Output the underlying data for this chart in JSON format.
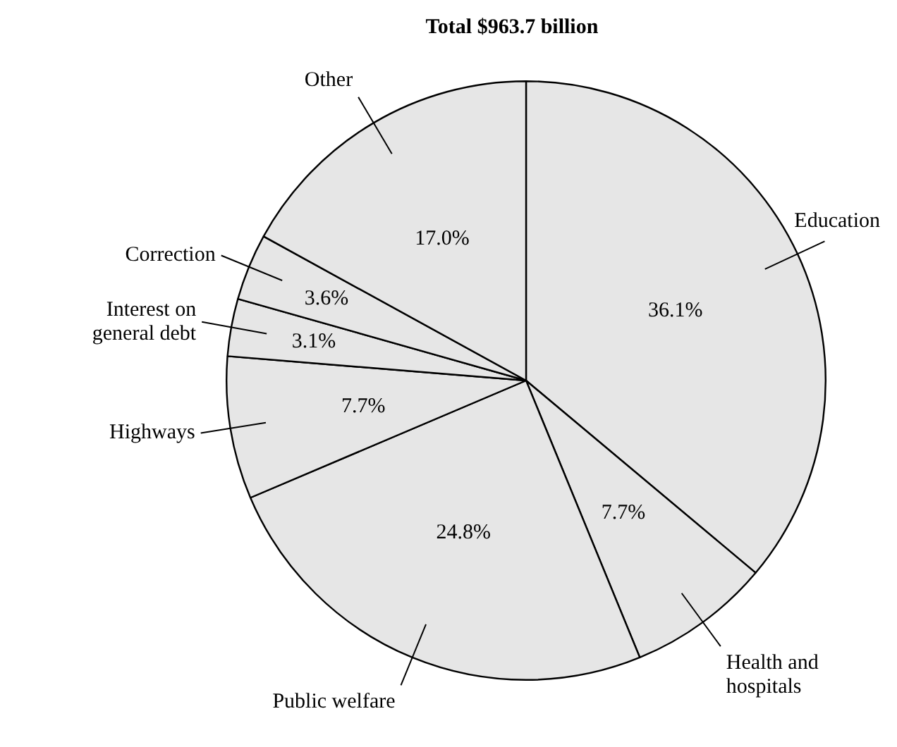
{
  "chart_data": {
    "type": "pie",
    "title": "Total $963.7 billion",
    "categories": [
      "Education",
      "Health and hospitals",
      "Public welfare",
      "Highways",
      "Interest on general debt",
      "Correction",
      "Other"
    ],
    "values": [
      36.1,
      7.7,
      24.8,
      7.7,
      3.1,
      3.6,
      17.0
    ],
    "value_labels": [
      "36.1%",
      "7.7%",
      "24.8%",
      "7.7%",
      "3.1%",
      "3.6%",
      "17.0%"
    ],
    "colors": [
      "#e6e6e6",
      "#e6e6e6",
      "#e6e6e6",
      "#e6e6e6",
      "#e6e6e6",
      "#e6e6e6",
      "#e6e6e6"
    ],
    "legend": false
  }
}
